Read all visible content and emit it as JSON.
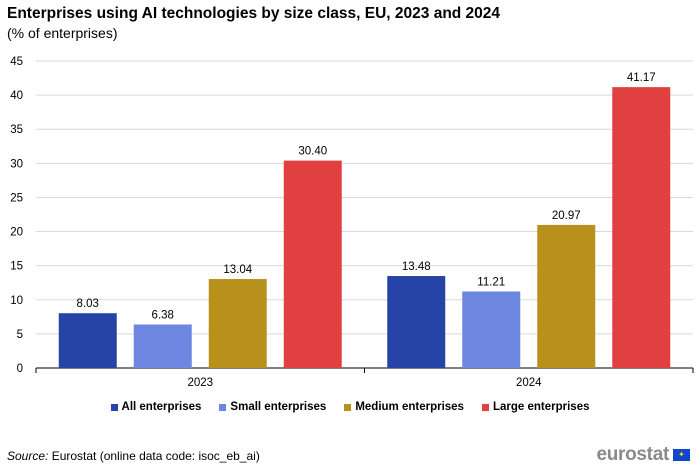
{
  "chart_data": {
    "type": "bar",
    "title": "Enterprises using AI technologies by size class, EU, 2023 and 2024",
    "subtitle": "(% of enterprises)",
    "categories": [
      "2023",
      "2024"
    ],
    "series": [
      {
        "name": "All enterprises",
        "color": "#2644a8",
        "values": [
          8.03,
          13.48
        ],
        "labels": [
          "8.03",
          "13.48"
        ]
      },
      {
        "name": "Small enterprises",
        "color": "#6d87e0",
        "values": [
          6.38,
          11.21
        ],
        "labels": [
          "6.38",
          "11.21"
        ]
      },
      {
        "name": "Medium enterprises",
        "color": "#b8911d",
        "values": [
          13.04,
          20.97
        ],
        "labels": [
          "13.04",
          "20.97"
        ]
      },
      {
        "name": "Large enterprises",
        "color": "#e04040",
        "values": [
          30.4,
          41.17
        ],
        "labels": [
          "30.40",
          "41.17"
        ]
      }
    ],
    "ylim": [
      0,
      45
    ],
    "yticks": [
      0,
      5,
      10,
      15,
      20,
      25,
      30,
      35,
      40,
      45
    ],
    "xlabel": "",
    "ylabel": "",
    "grid": true,
    "legend": "bottom"
  },
  "footer": {
    "source_label": "Source:",
    "source_text": " Eurostat (online data code: isoc_eb_ai)",
    "logo_text": "eurostat"
  }
}
